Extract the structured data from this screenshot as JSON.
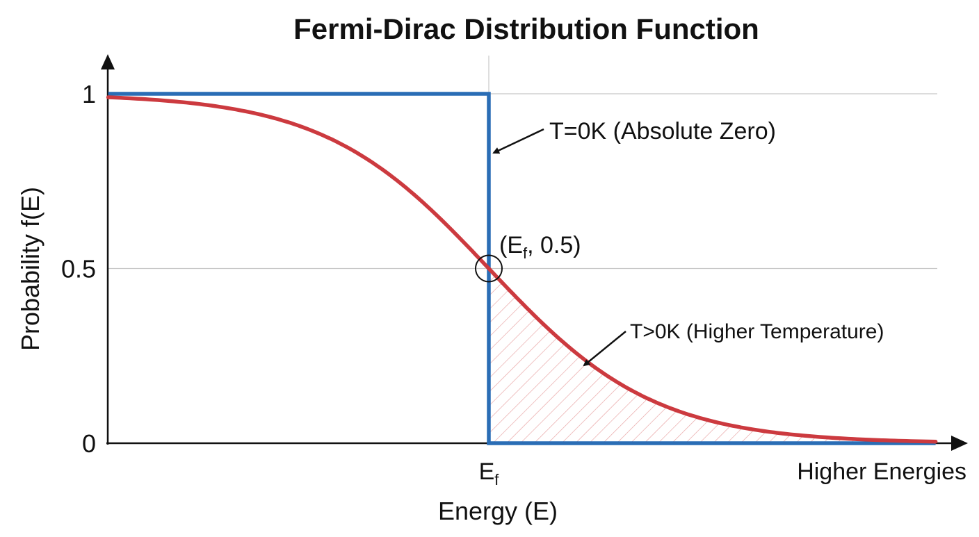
{
  "chart_data": {
    "type": "line",
    "title": "Fermi-Dirac Distribution Function",
    "xlabel": "Energy (E)",
    "ylabel": "Probability f(E)",
    "x_ticks": [
      {
        "value": 0,
        "label": "E",
        "sub": "f"
      }
    ],
    "x_end_label": "Higher Energies",
    "y_ticks": [
      {
        "value": 0,
        "label": "0"
      },
      {
        "value": 0.5,
        "label": "0.5"
      },
      {
        "value": 1,
        "label": "1"
      }
    ],
    "ylim": [
      0,
      1
    ],
    "xlim": [
      -4.6,
      5.4
    ],
    "grid": {
      "horizontal": [
        0.5,
        1
      ],
      "vertical": [
        0
      ]
    },
    "series": [
      {
        "id": "t0",
        "color": "#2a6db5",
        "kind": "step",
        "points": [
          [
            -4.6,
            1
          ],
          [
            0,
            1
          ],
          [
            0,
            0
          ],
          [
            5.4,
            0
          ]
        ]
      },
      {
        "id": "tpos",
        "color": "#cc3a3f",
        "kind": "fermi",
        "kT": 1,
        "mu": 0,
        "x_range": [
          -4.6,
          5.4
        ],
        "hatched_region": [
          0,
          5.4
        ]
      }
    ],
    "annotations": [
      {
        "id": "t0-label",
        "text": "T=0K (Absolute Zero)",
        "points_to": [
          0,
          0.83
        ]
      },
      {
        "id": "tpos-label",
        "text": "T>0K (Higher Temperature)",
        "points_to": [
          1.1,
          0.22
        ]
      },
      {
        "id": "point-label",
        "text_pre": "(E",
        "text_sub": "f",
        "text_post": ", 0.5)",
        "marker": [
          0,
          0.5
        ]
      }
    ],
    "hatch_color": "#e8a0a0"
  }
}
